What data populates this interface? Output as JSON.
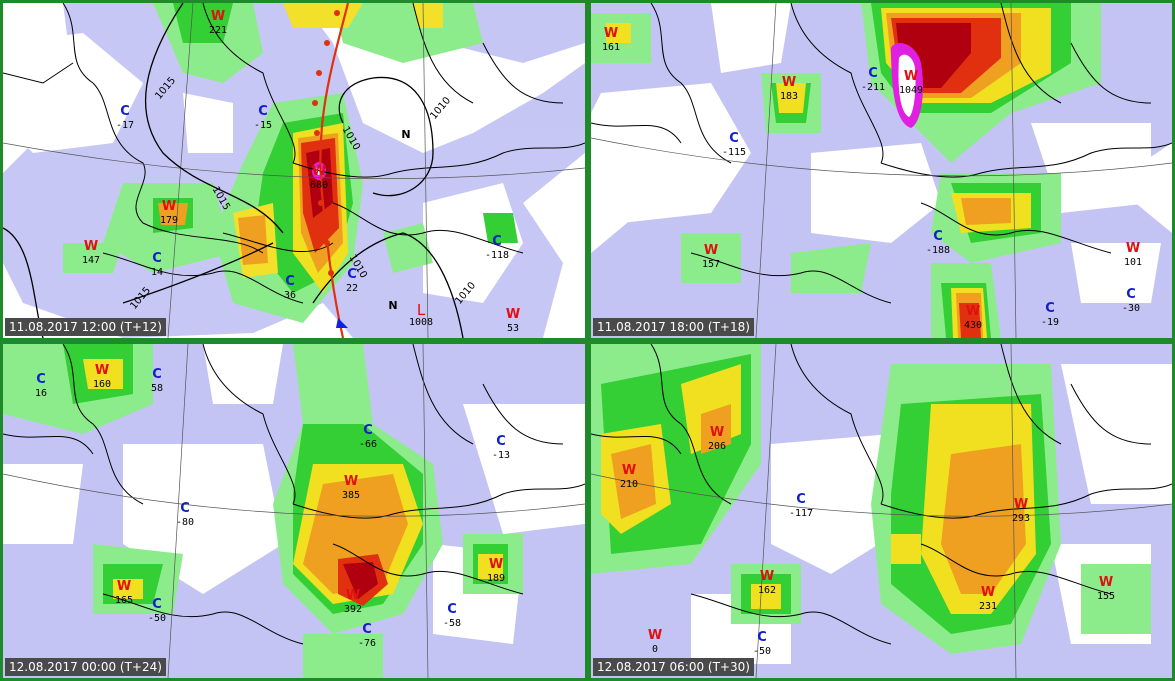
{
  "panels": [
    {
      "timestamp": "11.08.2017 12:00 (T+12)",
      "markers": [
        {
          "kind": "W",
          "value": "221"
        },
        {
          "kind": "C",
          "value": "-17"
        },
        {
          "kind": "C",
          "value": "-15"
        },
        {
          "kind": "W",
          "value": "179"
        },
        {
          "kind": "W",
          "value": "147"
        },
        {
          "kind": "C",
          "value": "14"
        },
        {
          "kind": "C",
          "value": "36"
        },
        {
          "kind": "C",
          "value": "22"
        },
        {
          "kind": "W",
          "value": "680"
        },
        {
          "kind": "C",
          "value": "-118"
        },
        {
          "kind": "W",
          "value": "53"
        },
        {
          "kind": "L",
          "value": "1008"
        }
      ],
      "isobars": [
        "1015",
        "1010",
        "1010",
        "1015",
        "1015",
        "1010",
        "1010"
      ],
      "n_labels": [
        "N",
        "N"
      ]
    },
    {
      "timestamp": "11.08.2017 18:00 (T+18)",
      "markers": [
        {
          "kind": "W",
          "value": "161"
        },
        {
          "kind": "W",
          "value": "183"
        },
        {
          "kind": "C",
          "value": "-211"
        },
        {
          "kind": "W",
          "value": "1049"
        },
        {
          "kind": "C",
          "value": "-115"
        },
        {
          "kind": "W",
          "value": "157"
        },
        {
          "kind": "C",
          "value": "-188"
        },
        {
          "kind": "W",
          "value": "101"
        },
        {
          "kind": "C",
          "value": "-30"
        },
        {
          "kind": "C",
          "value": "-19"
        },
        {
          "kind": "W",
          "value": "430"
        }
      ]
    },
    {
      "timestamp": "12.08.2017 00:00 (T+24)",
      "markers": [
        {
          "kind": "C",
          "value": "16"
        },
        {
          "kind": "W",
          "value": "160"
        },
        {
          "kind": "C",
          "value": "58"
        },
        {
          "kind": "C",
          "value": "-66"
        },
        {
          "kind": "C",
          "value": "-13"
        },
        {
          "kind": "W",
          "value": "385"
        },
        {
          "kind": "C",
          "value": "-80"
        },
        {
          "kind": "W",
          "value": "165"
        },
        {
          "kind": "C",
          "value": "-50"
        },
        {
          "kind": "W",
          "value": "392"
        },
        {
          "kind": "W",
          "value": "189"
        },
        {
          "kind": "C",
          "value": "-58"
        },
        {
          "kind": "C",
          "value": "-76"
        }
      ]
    },
    {
      "timestamp": "12.08.2017 06:00 (T+30)",
      "markers": [
        {
          "kind": "W",
          "value": "206"
        },
        {
          "kind": "W",
          "value": "210"
        },
        {
          "kind": "C",
          "value": "-117"
        },
        {
          "kind": "W",
          "value": "293"
        },
        {
          "kind": "W",
          "value": "162"
        },
        {
          "kind": "W",
          "value": "231"
        },
        {
          "kind": "W",
          "value": "155"
        },
        {
          "kind": "C",
          "value": "-50"
        },
        {
          "kind": "W",
          "value": "0"
        }
      ]
    }
  ],
  "colors": {
    "border": "#1f8a2a",
    "lavender": "#b4b4f0",
    "light_lavender": "#d6d6f8",
    "light_green": "#a0f0a0",
    "green": "#30d030",
    "yellow": "#f0e020",
    "orange": "#f0a020",
    "red": "#e03010",
    "dark_red": "#b00010",
    "magenta": "#e020e0",
    "cold_symbol": "#1020c8",
    "warm_symbol": "#e01010"
  }
}
